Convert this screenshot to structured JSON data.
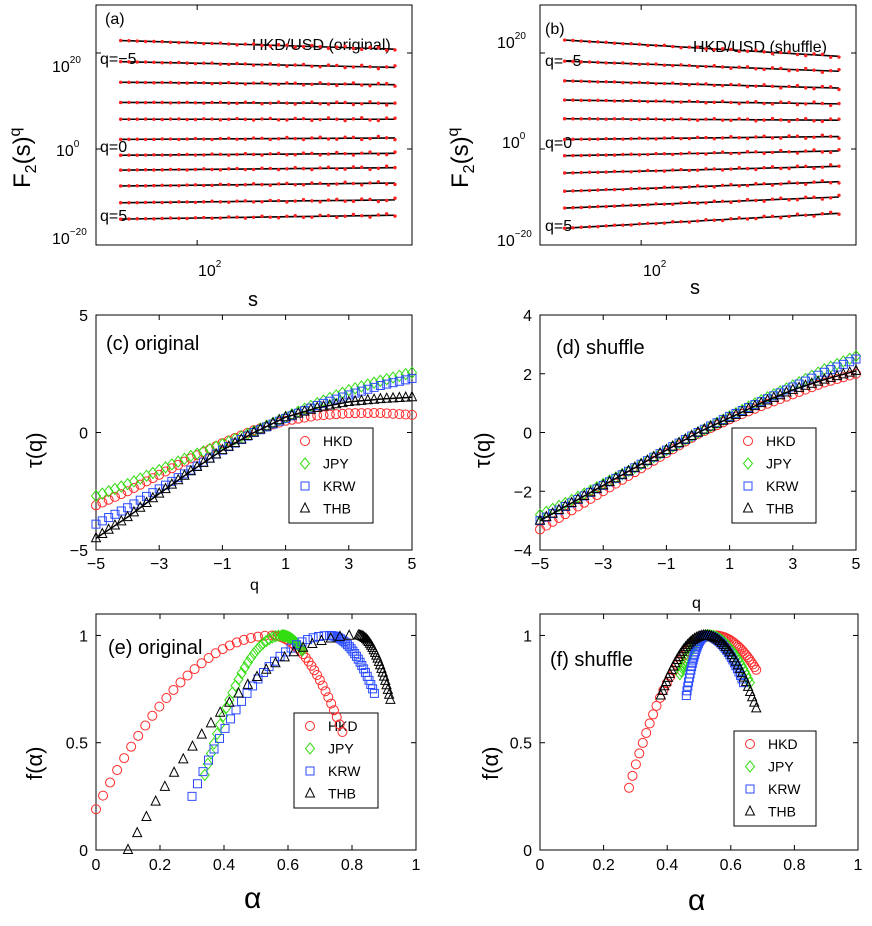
{
  "figure": {
    "panels": {
      "a": {
        "label": "(a)",
        "title": "HKD/USD (original)",
        "ylabel": "F",
        "ylabel_sub": "2",
        "ylabel_rest": "(s)",
        "ylabel_sup": "q",
        "xlabel": "s",
        "xtick_base": "10",
        "xtick_exp": "2",
        "ytick_base": "10",
        "yticks": [
          {
            "exp": "20"
          },
          {
            "exp": "0"
          },
          {
            "exp": "−20"
          }
        ],
        "q_labels": [
          "q=−5",
          "q=0",
          "q=5"
        ]
      },
      "b": {
        "label": "(b)",
        "title": "HKD/USD (shuffle)",
        "ylabel": "F",
        "ylabel_sub": "2",
        "ylabel_rest": "(s)",
        "ylabel_sup": "q",
        "xlabel": "s",
        "xtick_base": "10",
        "xtick_exp": "2",
        "ytick_base": "10",
        "yticks": [
          {
            "exp": "20"
          },
          {
            "exp": "0"
          },
          {
            "exp": "−20"
          }
        ],
        "q_labels": [
          "q=−5",
          "q=0",
          "q=5"
        ]
      },
      "c": {
        "label": "(c) original",
        "ylabel": "τ(q)",
        "xlabel": "q"
      },
      "d": {
        "label": "(d) shuffle",
        "ylabel": "τ(q)",
        "xlabel": "q"
      },
      "e": {
        "label": "(e) original",
        "ylabel": "f(α)",
        "xlabel": "α"
      },
      "f": {
        "label": "(f) shuffle",
        "ylabel": "f(α)",
        "xlabel": "α"
      }
    },
    "legend": [
      {
        "name": "HKD",
        "marker": "circle",
        "color": "#ff2a2a"
      },
      {
        "name": "JPY",
        "marker": "diamond",
        "color": "#33dd11"
      },
      {
        "name": "KRW",
        "marker": "square",
        "color": "#2b4bff"
      },
      {
        "name": "THB",
        "marker": "triangle",
        "color": "#000000"
      }
    ]
  },
  "chart_data": [
    {
      "id": "a",
      "type": "scatter",
      "title": "HKD/USD (original)",
      "xlabel": "s",
      "ylabel": "F_2(s)^q",
      "xscale": "log",
      "yscale": "log",
      "xlim": [
        40,
        700
      ],
      "ylim_log10": [
        -20,
        30
      ],
      "xticks": [
        100
      ],
      "yticks_log10": [
        -20,
        0,
        20
      ],
      "q": [
        -5,
        -4,
        -3,
        -2,
        -1,
        0,
        1,
        2,
        3,
        4,
        5
      ],
      "s_range": [
        50,
        600
      ],
      "log10_F_at_s_min": [
        22.6,
        18.2,
        13.9,
        9.7,
        6.2,
        2.0,
        -1.3,
        -4.4,
        -7.7,
        -11.2,
        -14.6
      ],
      "log10_F_at_s_max": [
        20.8,
        17.0,
        13.4,
        9.5,
        6.2,
        2.3,
        -0.9,
        -3.9,
        -7.1,
        -10.6,
        -13.8
      ],
      "fit_line": true
    },
    {
      "id": "b",
      "type": "scatter",
      "title": "HKD/USD (shuffle)",
      "xlabel": "s",
      "ylabel": "F_2(s)^q",
      "xscale": "log",
      "yscale": "log",
      "xlim": [
        40,
        700
      ],
      "ylim_log10": [
        -20,
        30
      ],
      "xticks": [
        100
      ],
      "yticks_log10": [
        -20,
        0,
        20
      ],
      "q": [
        -5,
        -4,
        -3,
        -2,
        -1,
        0,
        1,
        2,
        3,
        4,
        5
      ],
      "s_range": [
        50,
        600
      ],
      "log10_F_at_s_min": [
        22.7,
        18.3,
        14.2,
        10.2,
        6.3,
        2.0,
        -1.4,
        -5.0,
        -8.8,
        -12.3,
        -16.5
      ],
      "log10_F_at_s_max": [
        19.3,
        16.2,
        12.7,
        9.4,
        6.0,
        2.6,
        -0.4,
        -3.6,
        -6.8,
        -10.0,
        -13.4
      ],
      "fit_line": true
    },
    {
      "id": "c",
      "type": "scatter",
      "title": "(c) original",
      "xlabel": "q",
      "ylabel": "τ(q)",
      "xlim": [
        -5,
        5
      ],
      "ylim": [
        -5,
        5
      ],
      "xticks": [
        -5,
        -3,
        -1,
        1,
        3,
        5
      ],
      "yticks": [
        -5,
        0,
        5
      ],
      "legend": "lower-right",
      "series": [
        {
          "name": "HKD",
          "q": [
            -5,
            -4,
            -3,
            -2,
            -1,
            0,
            1,
            2,
            3,
            4,
            5
          ],
          "tau": [
            -3.1,
            -2.5,
            -1.8,
            -1.1,
            -0.45,
            0.1,
            0.5,
            0.72,
            0.82,
            0.83,
            0.75
          ]
        },
        {
          "name": "JPY",
          "q": [
            -5,
            -4,
            -3,
            -2,
            -1,
            0,
            1,
            2,
            3,
            4,
            5
          ],
          "tau": [
            -2.7,
            -2.2,
            -1.6,
            -1.0,
            -0.5,
            0.05,
            0.65,
            1.25,
            1.8,
            2.2,
            2.55
          ]
        },
        {
          "name": "KRW",
          "q": [
            -5,
            -4,
            -3,
            -2,
            -1,
            0,
            1,
            2,
            3,
            4,
            5
          ],
          "tau": [
            -3.9,
            -3.2,
            -2.4,
            -1.6,
            -0.75,
            0.0,
            0.6,
            1.15,
            1.6,
            2.0,
            2.3
          ]
        },
        {
          "name": "THB",
          "q": [
            -5,
            -4,
            -3,
            -2,
            -1,
            0,
            1,
            2,
            3,
            4,
            5
          ],
          "tau": [
            -4.5,
            -3.6,
            -2.6,
            -1.65,
            -0.75,
            0.0,
            0.65,
            1.05,
            1.3,
            1.42,
            1.5
          ]
        }
      ]
    },
    {
      "id": "d",
      "type": "scatter",
      "title": "(d) shuffle",
      "xlabel": "q",
      "ylabel": "τ(q)",
      "xlim": [
        -5,
        5
      ],
      "ylim": [
        -4,
        4
      ],
      "xticks": [
        -5,
        -3,
        -1,
        1,
        3,
        5
      ],
      "yticks": [
        -4,
        -2,
        0,
        2,
        4
      ],
      "legend": "lower-right",
      "series": [
        {
          "name": "HKD",
          "q": [
            -5,
            -4,
            -3,
            -2,
            -1,
            0,
            1,
            2,
            3,
            4,
            5
          ],
          "tau": [
            -3.3,
            -2.65,
            -2.0,
            -1.35,
            -0.7,
            -0.05,
            0.45,
            0.9,
            1.3,
            1.7,
            2.0
          ]
        },
        {
          "name": "JPY",
          "q": [
            -5,
            -4,
            -3,
            -2,
            -1,
            0,
            1,
            2,
            3,
            4,
            5
          ],
          "tau": [
            -2.8,
            -2.3,
            -1.75,
            -1.2,
            -0.6,
            0.0,
            0.55,
            1.1,
            1.6,
            2.15,
            2.6
          ]
        },
        {
          "name": "KRW",
          "q": [
            -5,
            -4,
            -3,
            -2,
            -1,
            0,
            1,
            2,
            3,
            4,
            5
          ],
          "tau": [
            -3.0,
            -2.4,
            -1.8,
            -1.2,
            -0.6,
            0.0,
            0.55,
            1.05,
            1.55,
            2.05,
            2.5
          ]
        },
        {
          "name": "THB",
          "q": [
            -5,
            -4,
            -3,
            -2,
            -1,
            0,
            1,
            2,
            3,
            4,
            5
          ],
          "tau": [
            -3.0,
            -2.4,
            -1.8,
            -1.2,
            -0.6,
            0.0,
            0.5,
            1.0,
            1.45,
            1.8,
            2.1
          ]
        }
      ]
    },
    {
      "id": "e",
      "type": "scatter",
      "title": "(e) original",
      "xlabel": "α",
      "ylabel": "f(α)",
      "xlim": [
        0,
        1
      ],
      "ylim": [
        0,
        1.1
      ],
      "xticks": [
        0,
        0.2,
        0.4,
        0.6,
        0.8,
        1
      ],
      "yticks": [
        0,
        0.5,
        1
      ],
      "legend": "lower-right",
      "series": [
        {
          "name": "HKD",
          "alpha_min": 0.0,
          "alpha_peak": 0.55,
          "alpha_max": 0.77,
          "f_left": 0.19,
          "f_right": 0.55
        },
        {
          "name": "JPY",
          "alpha_min": 0.34,
          "alpha_peak": 0.58,
          "alpha_max": 0.645,
          "f_left": 0.35,
          "f_right": 0.93
        },
        {
          "name": "KRW",
          "alpha_min": 0.3,
          "alpha_peak": 0.73,
          "alpha_max": 0.87,
          "f_left": 0.25,
          "f_right": 0.73
        },
        {
          "name": "THB",
          "alpha_min": 0.1,
          "alpha_peak": 0.82,
          "alpha_max": 0.92,
          "f_left": 0.0,
          "f_right": 0.7
        }
      ]
    },
    {
      "id": "f",
      "type": "scatter",
      "title": "(f) shuffle",
      "xlabel": "α",
      "ylabel": "f(α)",
      "xlim": [
        0,
        1
      ],
      "ylim": [
        0,
        1.1
      ],
      "xticks": [
        0,
        0.2,
        0.4,
        0.6,
        0.8,
        1
      ],
      "yticks": [
        0,
        0.5,
        1
      ],
      "legend": "lower-right",
      "series": [
        {
          "name": "HKD",
          "alpha_min": 0.28,
          "alpha_peak": 0.55,
          "alpha_max": 0.68,
          "f_left": 0.29,
          "f_right": 0.84
        },
        {
          "name": "JPY",
          "alpha_min": 0.44,
          "alpha_peak": 0.53,
          "alpha_max": 0.66,
          "f_left": 0.82,
          "f_right": 0.78
        },
        {
          "name": "KRW",
          "alpha_min": 0.46,
          "alpha_peak": 0.52,
          "alpha_max": 0.64,
          "f_left": 0.72,
          "f_right": 0.78
        },
        {
          "name": "THB",
          "alpha_min": 0.38,
          "alpha_peak": 0.52,
          "alpha_max": 0.68,
          "f_left": 0.72,
          "f_right": 0.66
        }
      ]
    }
  ]
}
